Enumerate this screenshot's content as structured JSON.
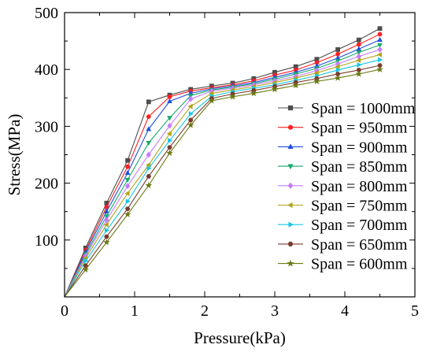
{
  "chart_data": {
    "type": "line",
    "title": "",
    "xlabel": "Pressure(kPa)",
    "ylabel": "Stress(MPa)",
    "xlim": [
      0,
      5
    ],
    "ylim": [
      0,
      500
    ],
    "xticks": [
      "0",
      "1",
      "2",
      "3",
      "4",
      "5"
    ],
    "yticks": [
      "100",
      "200",
      "300",
      "400",
      "500"
    ],
    "x": [
      0,
      0.3,
      0.6,
      0.9,
      1.2,
      1.5,
      1.8,
      2.1,
      2.4,
      2.7,
      3.0,
      3.3,
      3.6,
      3.9,
      4.2,
      4.5
    ],
    "grid": false,
    "legend_position": "right",
    "series": [
      {
        "name": "Span = 1000mm",
        "color": "#4d4d4d",
        "marker": "square",
        "values": [
          0,
          86,
          165,
          240,
          343,
          355,
          365,
          371,
          376,
          384,
          395,
          405,
          418,
          435,
          452,
          472
        ]
      },
      {
        "name": "Span = 950mm",
        "color": "#ff2020",
        "marker": "circle",
        "values": [
          0,
          82,
          158,
          229,
          317,
          352,
          362,
          368,
          373,
          380,
          390,
          399,
          412,
          427,
          444,
          462
        ]
      },
      {
        "name": "Span = 900mm",
        "color": "#1f4fe0",
        "marker": "triangle-up",
        "values": [
          0,
          79,
          150,
          218,
          295,
          344,
          358,
          366,
          371,
          377,
          386,
          395,
          406,
          420,
          436,
          452
        ]
      },
      {
        "name": "Span = 850mm",
        "color": "#19a86b",
        "marker": "triangle-down",
        "values": [
          0,
          75,
          142,
          206,
          271,
          315,
          354,
          364,
          369,
          375,
          383,
          392,
          402,
          415,
          430,
          443
        ]
      },
      {
        "name": "Span = 800mm",
        "color": "#c77cff",
        "marker": "diamond",
        "values": [
          0,
          72,
          135,
          195,
          250,
          301,
          348,
          362,
          367,
          373,
          380,
          388,
          398,
          410,
          423,
          435
        ]
      },
      {
        "name": "Span = 750mm",
        "color": "#b3a21a",
        "marker": "triangle-left",
        "values": [
          0,
          68,
          127,
          182,
          232,
          287,
          335,
          358,
          364,
          370,
          377,
          385,
          394,
          405,
          416,
          426
        ]
      },
      {
        "name": "Span = 700mm",
        "color": "#19c6e6",
        "marker": "triangle-right",
        "values": [
          0,
          63,
          117,
          168,
          226,
          275,
          322,
          353,
          361,
          367,
          373,
          381,
          389,
          399,
          408,
          417
        ]
      },
      {
        "name": "Span = 650mm",
        "color": "#7a3b2e",
        "marker": "hexagon",
        "values": [
          0,
          55,
          106,
          155,
          212,
          263,
          311,
          349,
          357,
          363,
          370,
          377,
          384,
          392,
          399,
          407
        ]
      },
      {
        "name": "Span = 600mm",
        "color": "#6b7a12",
        "marker": "star",
        "values": [
          0,
          48,
          96,
          145,
          196,
          253,
          302,
          345,
          352,
          358,
          365,
          372,
          379,
          385,
          392,
          400
        ]
      }
    ]
  }
}
